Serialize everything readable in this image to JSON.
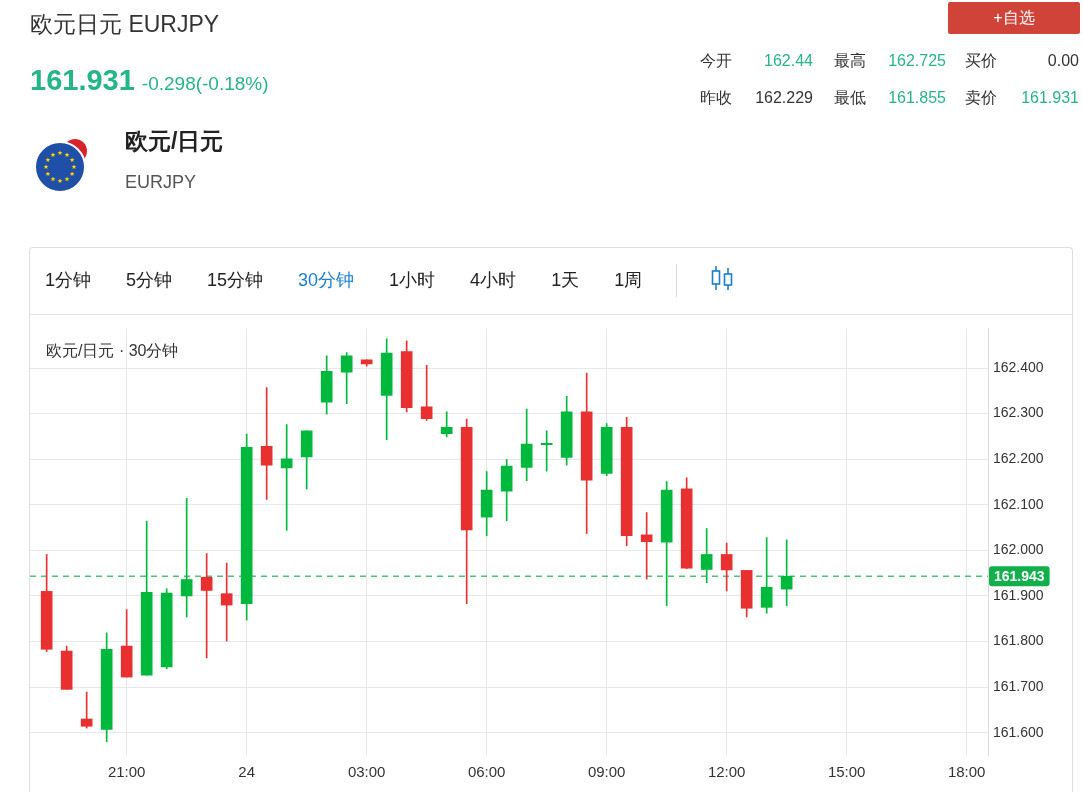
{
  "chart_data": {
    "type": "candlestick",
    "title": "欧元日元 EURJPY",
    "subtitle": "欧元/日元 · 30分钟",
    "annotations": [
      "161.931",
      "-0.298(-0.18%)",
      "欧元/日元",
      "EURJPY",
      "+自选",
      "今开",
      "162.44",
      "最高",
      "162.725",
      "买价",
      "0.00",
      "昨收",
      "162.229",
      "最低",
      "161.855",
      "卖价",
      "161.931",
      "1分钟",
      "5分钟",
      "15分钟",
      "30分钟",
      "1小时",
      "4小时",
      "1天",
      "1周"
    ],
    "x": [
      "--01-23T19:00",
      "--01-23T19:30",
      "--01-23T20:00",
      "--01-23T20:30",
      "--01-23T21:00",
      "--01-23T21:30",
      "--01-23T22:00",
      "--01-23T22:30",
      "--01-23T23:00",
      "--01-23T23:30",
      "--01-24T00:00",
      "--01-24T00:30",
      "--01-24T01:00",
      "--01-24T01:30",
      "--01-24T02:00",
      "--01-24T02:30",
      "--01-24T03:00",
      "--01-24T03:30",
      "--01-24T04:00",
      "--01-24T04:30",
      "--01-24T05:00",
      "--01-24T05:30",
      "--01-24T06:00",
      "--01-24T06:30",
      "--01-24T07:00",
      "--01-24T07:30",
      "--01-24T08:00",
      "--01-24T08:30",
      "--01-24T09:00",
      "--01-24T09:30",
      "--01-24T10:00",
      "--01-24T10:30",
      "--01-24T11:00",
      "--01-24T11:30",
      "--01-24T12:00",
      "--01-24T12:30",
      "--01-24T13:00",
      "--01-24T13:30"
    ],
    "ohlc": [
      [
        161.91,
        161.991,
        161.778,
        161.783
      ],
      [
        161.779,
        161.79,
        161.695,
        161.695
      ],
      [
        161.63,
        161.689,
        161.61,
        161.614
      ],
      [
        161.607,
        161.819,
        161.58,
        161.783
      ],
      [
        161.79,
        161.87,
        161.722,
        161.722
      ],
      [
        161.726,
        162.064,
        161.726,
        161.908
      ],
      [
        161.744,
        161.916,
        161.74,
        161.906
      ],
      [
        161.9,
        162.114,
        161.854,
        161.936
      ],
      [
        161.941,
        161.993,
        161.764,
        161.912
      ],
      [
        161.905,
        161.972,
        161.801,
        161.88
      ],
      [
        161.883,
        162.255,
        161.847,
        162.226
      ],
      [
        162.228,
        162.357,
        162.112,
        162.187
      ],
      [
        162.181,
        162.276,
        162.044,
        162.201
      ],
      [
        162.205,
        162.262,
        162.135,
        162.262
      ],
      [
        162.325,
        162.427,
        162.299,
        162.393
      ],
      [
        162.391,
        162.434,
        162.322,
        162.427
      ],
      [
        162.418,
        162.418,
        162.404,
        162.409
      ],
      [
        162.34,
        162.464,
        162.243,
        162.433
      ],
      [
        162.436,
        162.46,
        162.304,
        162.313
      ],
      [
        162.315,
        162.406,
        162.285,
        162.289
      ],
      [
        162.256,
        162.304,
        162.249,
        162.27
      ],
      [
        162.27,
        162.288,
        161.883,
        162.045
      ],
      [
        162.073,
        162.173,
        162.032,
        162.132
      ],
      [
        162.13,
        162.199,
        162.065,
        162.185
      ],
      [
        162.182,
        162.31,
        162.153,
        162.233
      ],
      [
        162.232,
        162.262,
        162.174,
        162.235
      ],
      [
        162.204,
        162.338,
        162.187,
        162.304
      ],
      [
        162.304,
        162.389,
        162.037,
        162.154
      ],
      [
        162.169,
        162.278,
        162.164,
        162.27
      ],
      [
        162.27,
        162.292,
        162.01,
        162.032
      ],
      [
        162.034,
        162.083,
        161.937,
        162.019
      ],
      [
        162.018,
        162.151,
        161.879,
        162.132
      ],
      [
        162.135,
        162.159,
        161.96,
        161.961
      ],
      [
        161.958,
        162.048,
        161.929,
        161.991
      ],
      [
        161.991,
        162.016,
        161.911,
        161.957
      ],
      [
        161.956,
        161.956,
        161.854,
        161.873
      ],
      [
        161.875,
        162.028,
        161.862,
        161.919
      ],
      [
        161.915,
        162.023,
        161.879,
        161.943
      ]
    ],
    "colors": [
      "#e83030",
      "#e83030",
      "#e83030",
      "#00b83c",
      "#e83030",
      "#00b83c",
      "#00b83c",
      "#00b83c",
      "#e83030",
      "#e83030",
      "#00b83c",
      "#e83030",
      "#00b83c",
      "#00b83c",
      "#00b83c",
      "#00b83c",
      "#e83030",
      "#00b83c",
      "#e83030",
      "#e83030",
      "#00b83c",
      "#e83030",
      "#00b83c",
      "#00b83c",
      "#00b83c",
      "#00b83c",
      "#00b83c",
      "#e83030",
      "#00b83c",
      "#e83030",
      "#e83030",
      "#00b83c",
      "#e83030",
      "#00b83c",
      "#e83030",
      "#e83030",
      "#00b83c",
      "#00b83c"
    ],
    "xlim": [
      "--01-23T18:35",
      "--01-24T18:32"
    ],
    "xticks": [
      {
        "value": "--01-23T21:00",
        "label": "21:00"
      },
      {
        "value": "--01-24T00:00",
        "label": "24"
      },
      {
        "value": "--01-24T03:00",
        "label": "03:00"
      },
      {
        "value": "--01-24T06:00",
        "label": "06:00"
      },
      {
        "value": "--01-24T09:00",
        "label": "09:00"
      },
      {
        "value": "--01-24T12:00",
        "label": "12:00"
      },
      {
        "value": "--01-24T15:00",
        "label": "15:00"
      },
      {
        "value": "--01-24T18:00",
        "label": "18:00"
      }
    ],
    "ylim": [
      161.551,
      162.487
    ],
    "yticks": [
      {
        "value": 161.6,
        "label": "161.600"
      },
      {
        "value": 161.7,
        "label": "161.700"
      },
      {
        "value": 161.8,
        "label": "161.800"
      },
      {
        "value": 161.9,
        "label": "161.900"
      },
      {
        "value": 162.0,
        "label": "162.000"
      },
      {
        "value": 162.1,
        "label": "162.100"
      },
      {
        "value": 162.2,
        "label": "162.200"
      },
      {
        "value": 162.3,
        "label": "162.300"
      },
      {
        "value": 162.4,
        "label": "162.400"
      }
    ],
    "grid": true,
    "ref_lines": [
      {
        "axis": "y",
        "value": 161.943,
        "label": "161.943",
        "color": "#12b04b",
        "line_style": "dashed"
      }
    ]
  }
}
